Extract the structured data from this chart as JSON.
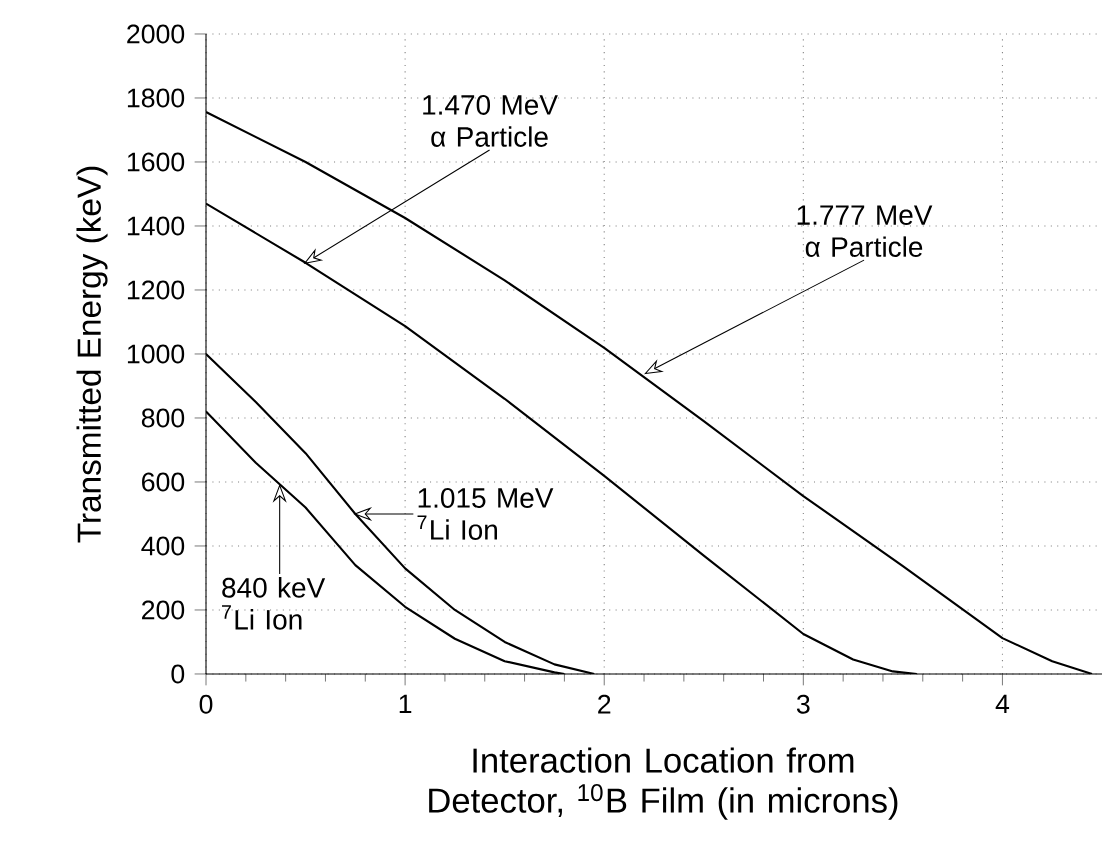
{
  "chart_data": {
    "type": "line",
    "xlabel": "Interaction Location from Detector, $^{10}$B Film (in microns)",
    "ylabel": "Transmitted Energy (keV)",
    "xlim": [
      0,
      4.5
    ],
    "ylim": [
      0,
      2000
    ],
    "xticks": [
      0,
      1,
      2,
      3,
      4
    ],
    "yticks": [
      0,
      200,
      400,
      600,
      800,
      1000,
      1200,
      1400,
      1600,
      1800,
      2000
    ],
    "grid": true,
    "marker": "none",
    "line_style": "solid",
    "series": [
      {
        "color": "#000000",
        "x": [
          0,
          0.5,
          1,
          1.5,
          2,
          2.5,
          3,
          3.5,
          4,
          4.25,
          4.45
        ],
        "values": [
          1756,
          1600,
          1425,
          1230,
          1019,
          790,
          556,
          337,
          112,
          40,
          0
        ]
      },
      {
        "color": "#000000",
        "x": [
          0,
          0.5,
          1,
          1.5,
          2,
          2.5,
          3,
          3.25,
          3.45,
          3.57
        ],
        "values": [
          1470,
          1285,
          1087,
          860,
          619,
          370,
          125,
          45,
          8,
          0
        ]
      },
      {
        "color": "#000000",
        "x": [
          0,
          0.25,
          0.5,
          0.75,
          1,
          1.25,
          1.5,
          1.75,
          1.95
        ],
        "values": [
          1000,
          850,
          690,
          500,
          330,
          200,
          100,
          30,
          0
        ]
      },
      {
        "color": "#000000",
        "x": [
          0,
          0.25,
          0.5,
          0.75,
          1,
          1.25,
          1.5,
          1.75,
          1.8
        ],
        "values": [
          820,
          660,
          520,
          340,
          210,
          110,
          40,
          5,
          0
        ]
      }
    ],
    "annotations": [
      {
        "text": "1.470 MeV α Particle",
        "x": 0.49,
        "y": 1281
      },
      {
        "text": "1.777 MeV α Particle",
        "x": 2.2,
        "y": 937
      },
      {
        "text": "1.015 MeV $^{7}$Li Ion",
        "x": 0.74,
        "y": 500
      },
      {
        "text": "840 keV $^{7}$Li Ion",
        "x": 0.37,
        "y": 594
      }
    ]
  }
}
